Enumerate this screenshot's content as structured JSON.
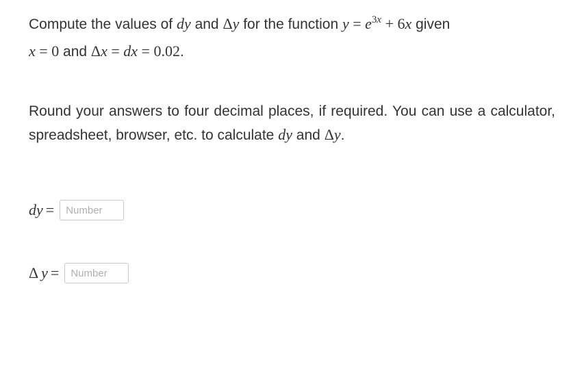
{
  "problem": {
    "sentence_a": "Compute the values of ",
    "dy": "dy",
    "and1": " and ",
    "delta_y": "Δy",
    "sentence_b": " for the function ",
    "y_eq": "y",
    "eq1": " = ",
    "e": "e",
    "exp_3": "3",
    "exp_x": "x",
    "plus": " + ",
    "six": "6",
    "x_var": "x",
    "given": " given",
    "line2_x": "x",
    "line2_eq1": " = ",
    "line2_zero": "0",
    "line2_and": " and ",
    "delta_x": "Δx",
    "line2_eq2": " = ",
    "dx": "dx",
    "line2_eq3": " = ",
    "val": "0.02",
    "period": "."
  },
  "instructions": {
    "p1": "Round your answers to four decimal places, if required. You can use a calculator, spreadsheet, browser, etc. to calculate ",
    "dy": "dy",
    "and": " and ",
    "delta_y": "Δy",
    "period": "."
  },
  "answers": {
    "dy_label": "dy",
    "delta_y_label": "Δy",
    "eq": "=",
    "placeholder": "Number"
  }
}
